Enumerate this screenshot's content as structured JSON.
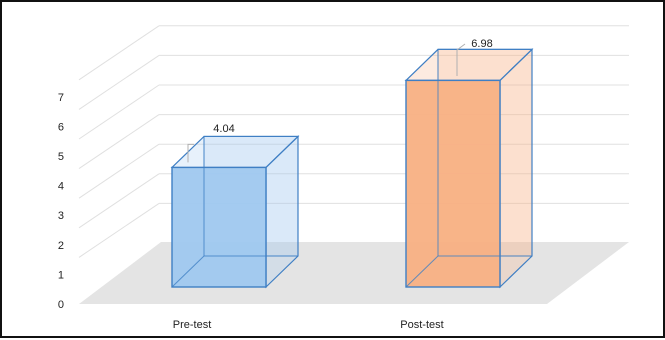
{
  "chart_data": {
    "type": "bar",
    "style": "3d-clustered-box",
    "categories": [
      "Pre-test",
      "Post-test"
    ],
    "values": [
      4.04,
      6.98
    ],
    "value_labels": [
      "4.04",
      "6.98"
    ],
    "y_ticks": [
      "0",
      "1",
      "2",
      "3",
      "4",
      "5",
      "6",
      "7"
    ],
    "ylim": [
      0,
      7
    ],
    "grid": true,
    "legend": "none",
    "colors": {
      "pre_fill": "#9fc8ef",
      "pre_edge": "#3f7fc4",
      "post_fill": "#f8b083",
      "post_edge": "#3f7fc4",
      "floor": "#e4e4e4",
      "grid": "#e0e0e0"
    }
  }
}
